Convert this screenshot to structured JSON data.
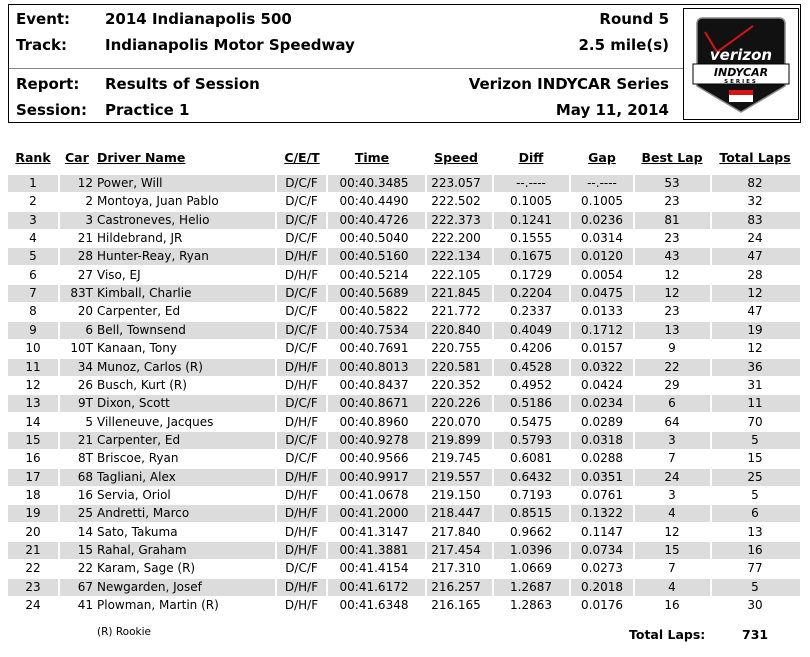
{
  "header": {
    "event_label": "Event:",
    "event": "2014 Indianapolis 500",
    "round": "Round 5",
    "track_label": "Track:",
    "track": "Indianapolis Motor Speedway",
    "length": "2.5 mile(s)",
    "report_label": "Report:",
    "report": "Results of Session",
    "series": "Verizon INDYCAR Series",
    "session_label": "Session:",
    "session": "Practice 1",
    "date": "May 11, 2014",
    "logo_text": [
      "verizon",
      "INDYCAR",
      "SERIES"
    ]
  },
  "columns": [
    "Rank",
    "Car",
    "Driver Name",
    "C/E/T",
    "Time",
    "Speed",
    "Diff",
    "Gap",
    "Best Lap",
    "Total Laps"
  ],
  "rows": [
    [
      "1",
      "12",
      "Power, Will",
      "D/C/F",
      "00:40.3485",
      "223.057",
      "--.----",
      "--.----",
      "53",
      "82"
    ],
    [
      "2",
      "2",
      "Montoya, Juan Pablo",
      "D/C/F",
      "00:40.4490",
      "222.502",
      "0.1005",
      "0.1005",
      "23",
      "32"
    ],
    [
      "3",
      "3",
      "Castroneves, Helio",
      "D/C/F",
      "00:40.4726",
      "222.373",
      "0.1241",
      "0.0236",
      "81",
      "83"
    ],
    [
      "4",
      "21",
      "Hildebrand, JR",
      "D/C/F",
      "00:40.5040",
      "222.200",
      "0.1555",
      "0.0314",
      "23",
      "24"
    ],
    [
      "5",
      "28",
      "Hunter-Reay, Ryan",
      "D/H/F",
      "00:40.5160",
      "222.134",
      "0.1675",
      "0.0120",
      "43",
      "47"
    ],
    [
      "6",
      "27",
      "Viso, EJ",
      "D/H/F",
      "00:40.5214",
      "222.105",
      "0.1729",
      "0.0054",
      "12",
      "28"
    ],
    [
      "7",
      "83T",
      "Kimball, Charlie",
      "D/C/F",
      "00:40.5689",
      "221.845",
      "0.2204",
      "0.0475",
      "12",
      "12"
    ],
    [
      "8",
      "20",
      "Carpenter, Ed",
      "D/C/F",
      "00:40.5822",
      "221.772",
      "0.2337",
      "0.0133",
      "23",
      "47"
    ],
    [
      "9",
      "6",
      "Bell, Townsend",
      "D/C/F",
      "00:40.7534",
      "220.840",
      "0.4049",
      "0.1712",
      "13",
      "19"
    ],
    [
      "10",
      "10T",
      "Kanaan, Tony",
      "D/C/F",
      "00:40.7691",
      "220.755",
      "0.4206",
      "0.0157",
      "9",
      "12"
    ],
    [
      "11",
      "34",
      "Munoz, Carlos (R)",
      "D/H/F",
      "00:40.8013",
      "220.581",
      "0.4528",
      "0.0322",
      "22",
      "36"
    ],
    [
      "12",
      "26",
      "Busch, Kurt (R)",
      "D/H/F",
      "00:40.8437",
      "220.352",
      "0.4952",
      "0.0424",
      "29",
      "31"
    ],
    [
      "13",
      "9T",
      "Dixon, Scott",
      "D/C/F",
      "00:40.8671",
      "220.226",
      "0.5186",
      "0.0234",
      "6",
      "11"
    ],
    [
      "14",
      "5",
      "Villeneuve, Jacques",
      "D/H/F",
      "00:40.8960",
      "220.070",
      "0.5475",
      "0.0289",
      "64",
      "70"
    ],
    [
      "15",
      "21",
      "Carpenter, Ed",
      "D/C/F",
      "00:40.9278",
      "219.899",
      "0.5793",
      "0.0318",
      "3",
      "5"
    ],
    [
      "16",
      "8T",
      "Briscoe, Ryan",
      "D/C/F",
      "00:40.9566",
      "219.745",
      "0.6081",
      "0.0288",
      "7",
      "15"
    ],
    [
      "17",
      "68",
      "Tagliani, Alex",
      "D/H/F",
      "00:40.9917",
      "219.557",
      "0.6432",
      "0.0351",
      "24",
      "25"
    ],
    [
      "18",
      "16",
      "Servia, Oriol",
      "D/H/F",
      "00:41.0678",
      "219.150",
      "0.7193",
      "0.0761",
      "3",
      "5"
    ],
    [
      "19",
      "25",
      "Andretti, Marco",
      "D/H/F",
      "00:41.2000",
      "218.447",
      "0.8515",
      "0.1322",
      "4",
      "6"
    ],
    [
      "20",
      "14",
      "Sato, Takuma",
      "D/H/F",
      "00:41.3147",
      "217.840",
      "0.9662",
      "0.1147",
      "12",
      "13"
    ],
    [
      "21",
      "15",
      "Rahal, Graham",
      "D/H/F",
      "00:41.3881",
      "217.454",
      "1.0396",
      "0.0734",
      "15",
      "16"
    ],
    [
      "22",
      "22",
      "Karam, Sage (R)",
      "D/C/F",
      "00:41.4154",
      "217.310",
      "1.0669",
      "0.0273",
      "7",
      "77"
    ],
    [
      "23",
      "67",
      "Newgarden, Josef",
      "D/H/F",
      "00:41.6172",
      "216.257",
      "1.2687",
      "0.2018",
      "4",
      "5"
    ],
    [
      "24",
      "41",
      "Plowman, Martin (R)",
      "D/H/F",
      "00:41.6348",
      "216.165",
      "1.2863",
      "0.0176",
      "16",
      "30"
    ]
  ],
  "footer": {
    "rookie_note": "(R) Rookie",
    "total_laps_label": "Total Laps:",
    "total_laps": "731"
  },
  "colors": {
    "row_shade": "#dcdcdc"
  }
}
